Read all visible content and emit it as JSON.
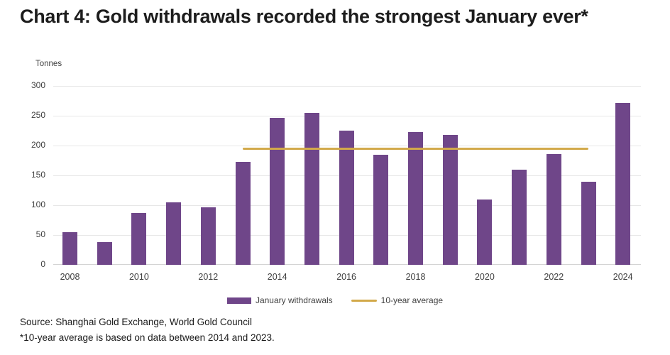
{
  "title": "Chart 4: Gold withdrawals recorded the strongest January ever*",
  "unit_label": "Tonnes",
  "legend": {
    "bars_label": "January withdrawals",
    "line_label": "10-year average"
  },
  "source_line": "Source: Shanghai Gold Exchange, World Gold Council",
  "footnote": "*10-year average is based on data between 2014 and 2023.",
  "colors": {
    "bar": "#6F4689",
    "avg_line": "#D2A94A",
    "grid": "#E7E7E7",
    "baseline": "#D4D4D4",
    "title_text": "#1D1D1D",
    "tick_text": "#3F3F3F"
  },
  "chart_data": {
    "type": "bar",
    "title": "Chart 4: Gold withdrawals recorded the strongest January ever*",
    "xlabel": "",
    "ylabel": "Tonnes",
    "ylim": [
      0,
      300
    ],
    "yticks": [
      0,
      50,
      100,
      150,
      200,
      250,
      300
    ],
    "grid": "horizontal",
    "legend_position": "bottom",
    "categories": [
      2008,
      2009,
      2010,
      2011,
      2012,
      2013,
      2014,
      2015,
      2016,
      2017,
      2018,
      2019,
      2020,
      2021,
      2022,
      2023,
      2024
    ],
    "x_tick_labels": [
      "2008",
      "2010",
      "2012",
      "2014",
      "2016",
      "2018",
      "2020",
      "2022",
      "2024"
    ],
    "series": [
      {
        "name": "January withdrawals",
        "type": "bar",
        "values": [
          55,
          38,
          87,
          105,
          96,
          173,
          246,
          255,
          225,
          184,
          223,
          218,
          110,
          159,
          186,
          139,
          271
        ]
      },
      {
        "name": "10-year average",
        "type": "line",
        "value": 195,
        "span_years": [
          2013,
          2023
        ]
      }
    ]
  }
}
